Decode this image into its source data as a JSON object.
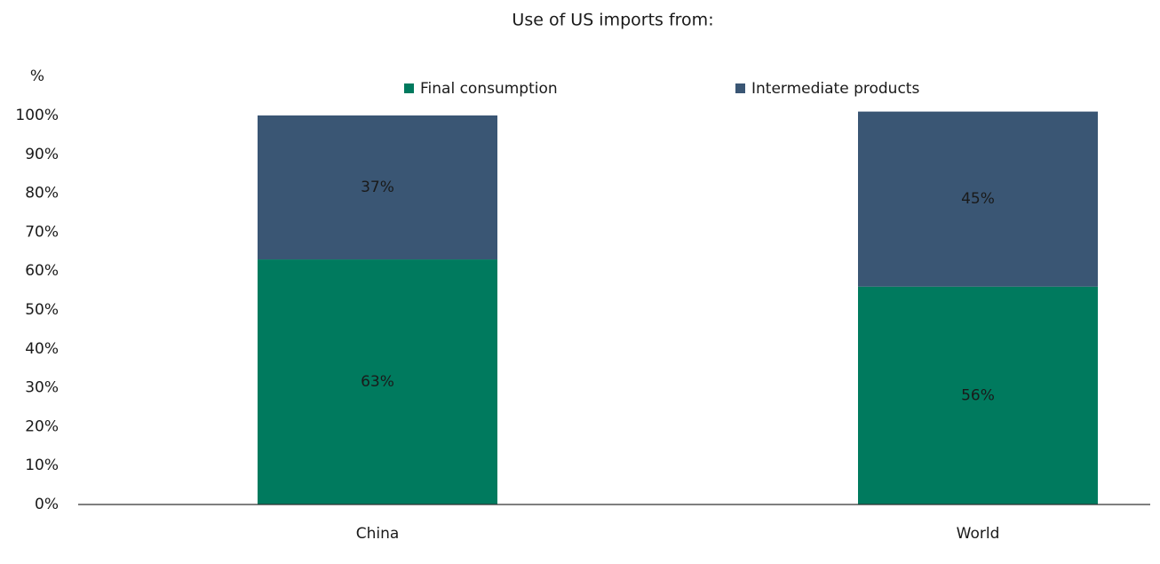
{
  "chart_data": {
    "type": "stacked-bar",
    "title": "Use of US imports from:",
    "y_label": "%",
    "categories": [
      "China",
      "World"
    ],
    "series": [
      {
        "name": "Final consumption",
        "color": "#007a5e",
        "values": [
          63,
          56
        ],
        "value_labels": [
          "63%",
          "56%"
        ]
      },
      {
        "name": "Intermediate products",
        "color": "#3a5674",
        "values": [
          37,
          45
        ],
        "value_labels": [
          "37%",
          "45%"
        ]
      }
    ],
    "ylim": [
      0,
      100
    ],
    "yticks": [
      {
        "value": 0,
        "label": "0%"
      },
      {
        "value": 10,
        "label": "10%"
      },
      {
        "value": 20,
        "label": "20%"
      },
      {
        "value": 30,
        "label": "30%"
      },
      {
        "value": 40,
        "label": "40%"
      },
      {
        "value": 50,
        "label": "50%"
      },
      {
        "value": 60,
        "label": "60%"
      },
      {
        "value": 70,
        "label": "70%"
      },
      {
        "value": 80,
        "label": "80%"
      },
      {
        "value": 90,
        "label": "90%"
      },
      {
        "value": 100,
        "label": "100%"
      }
    ],
    "grid": false,
    "legend": "top"
  }
}
